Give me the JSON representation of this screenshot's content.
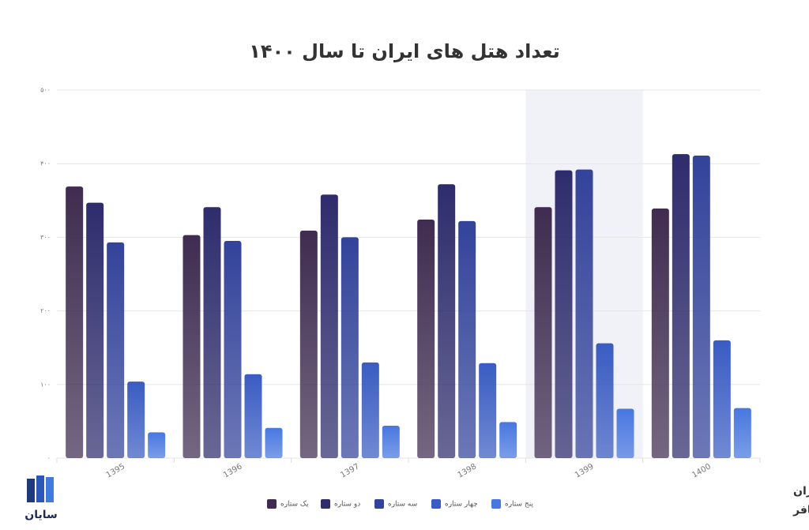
{
  "chart_data": {
    "type": "bar",
    "title": "تعداد هتل های ایران تا سال ۱۴۰۰",
    "categories": [
      "1395",
      "1396",
      "1397",
      "1398",
      "1399",
      "1400"
    ],
    "series": [
      {
        "name": "یک ستاره",
        "color": "#3f2c50",
        "values": [
          369,
          303,
          309,
          324,
          341,
          339
        ]
      },
      {
        "name": "دو ستاره",
        "color": "#2e2c6c",
        "values": [
          347,
          341,
          358,
          372,
          391,
          413
        ]
      },
      {
        "name": "سه ستاره",
        "color": "#33439a",
        "values": [
          293,
          295,
          300,
          322,
          392,
          411
        ]
      },
      {
        "name": "چهار ستاره",
        "color": "#3a5cc2",
        "values": [
          104,
          114,
          130,
          129,
          156,
          160
        ]
      },
      {
        "name": "پنج ستاره",
        "color": "#4877e0",
        "values": [
          35,
          41,
          44,
          49,
          67,
          68
        ]
      }
    ],
    "ylim": [
      0,
      500
    ],
    "yticks": [
      {
        "value": 0,
        "label": "۰"
      },
      {
        "value": 100,
        "label": "۱۰۰"
      },
      {
        "value": 200,
        "label": "۲۰۰"
      },
      {
        "value": 300,
        "label": "۳۰۰"
      },
      {
        "value": 400,
        "label": "۴۰۰"
      },
      {
        "value": 500,
        "label": "۵۰۰"
      }
    ],
    "grid": true,
    "highlight_category": 4,
    "legend": "bottom",
    "source": "منبع: مرکز آمار ایران",
    "credit": "تفکیک: وبسایت نمافر",
    "brand": "سایان"
  }
}
